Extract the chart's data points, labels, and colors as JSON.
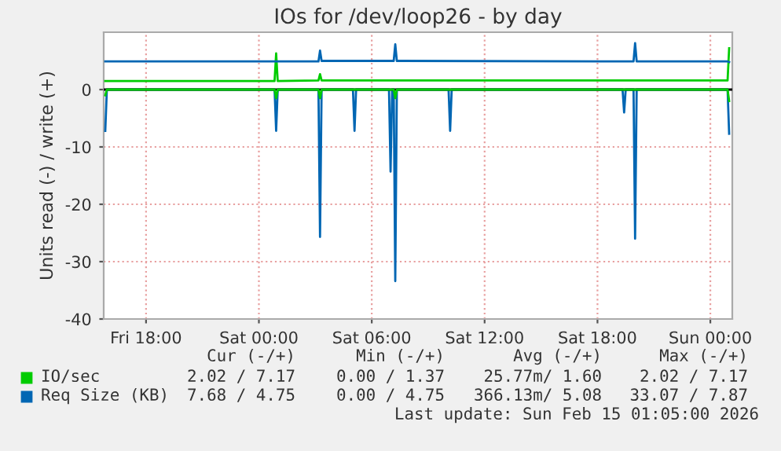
{
  "chart_data": {
    "type": "line",
    "title": "IOs for /dev/loop26 - by day",
    "ylabel": "Units read (-) / write (+)",
    "xlim": [
      "2026-02-13T15:45",
      "2026-02-15T01:10"
    ],
    "xticks": [
      {
        "value": "2026-02-13T18:00",
        "label": "Fri 18:00"
      },
      {
        "value": "2026-02-14T00:00",
        "label": "Sat 00:00"
      },
      {
        "value": "2026-02-14T06:00",
        "label": "Sat 06:00"
      },
      {
        "value": "2026-02-14T12:00",
        "label": "Sat 12:00"
      },
      {
        "value": "2026-02-14T18:00",
        "label": "Sat 18:00"
      },
      {
        "value": "2026-02-15T00:00",
        "label": "Sun 00:00"
      }
    ],
    "ylim": [
      -40,
      10
    ],
    "yticks": [
      0,
      -10,
      -20,
      -30,
      -40
    ],
    "grid": true,
    "legend": "bottom",
    "marker": "none",
    "line_style": "solid",
    "ref_lines": [
      {
        "axis": "y",
        "value": 0,
        "color": "#000000"
      }
    ],
    "series": [
      {
        "name": "IO/sec",
        "color": "#00cc00",
        "x": [
          "2026-02-13T15:50",
          "2026-02-14T00:50",
          "2026-02-14T00:55",
          "2026-02-14T01:00",
          "2026-02-14T03:10",
          "2026-02-14T03:15",
          "2026-02-14T03:20",
          "2026-02-15T00:55",
          "2026-02-15T01:00"
        ],
        "values": [
          1.5,
          1.5,
          6.3,
          1.5,
          1.6,
          2.7,
          1.6,
          1.6,
          7.2
        ]
      },
      {
        "color": "#00cc00",
        "x": [
          "2026-02-13T15:50",
          "2026-02-13T15:55",
          "2026-02-14T00:50",
          "2026-02-14T00:55",
          "2026-02-14T01:00",
          "2026-02-14T03:10",
          "2026-02-14T03:15",
          "2026-02-14T03:20",
          "2026-02-14T07:10",
          "2026-02-14T07:15",
          "2026-02-14T07:20",
          "2026-02-15T00:55",
          "2026-02-15T01:00"
        ],
        "values": [
          -1,
          0,
          0,
          -1.5,
          0,
          0,
          -1.5,
          0,
          0,
          -1.5,
          0,
          0,
          -2.0
        ]
      },
      {
        "name": "Req Size (KB)",
        "color": "#0066b3",
        "x": [
          "2026-02-13T15:50",
          "2026-02-14T03:10",
          "2026-02-14T03:15",
          "2026-02-14T03:20",
          "2026-02-14T07:10",
          "2026-02-14T07:15",
          "2026-02-14T07:20",
          "2026-02-14T19:55",
          "2026-02-14T20:00",
          "2026-02-14T20:05",
          "2026-02-15T00:55",
          "2026-02-15T01:00"
        ],
        "values": [
          4.9,
          4.9,
          6.8,
          5.0,
          5.0,
          7.9,
          5.0,
          4.9,
          8.1,
          4.9,
          4.9,
          4.8
        ]
      },
      {
        "color": "#0066b3",
        "x": [
          "2026-02-13T15:50",
          "2026-02-13T15:55",
          "2026-02-14T00:50",
          "2026-02-14T00:55",
          "2026-02-14T01:00",
          "2026-02-14T03:10",
          "2026-02-14T03:15",
          "2026-02-14T03:20",
          "2026-02-14T05:00",
          "2026-02-14T05:05",
          "2026-02-14T05:10",
          "2026-02-14T06:55",
          "2026-02-14T07:00",
          "2026-02-14T07:05",
          "2026-02-14T07:10",
          "2026-02-14T07:15",
          "2026-02-14T07:20",
          "2026-02-14T10:05",
          "2026-02-14T10:10",
          "2026-02-14T10:15",
          "2026-02-14T19:20",
          "2026-02-14T19:25",
          "2026-02-14T19:30",
          "2026-02-14T19:55",
          "2026-02-14T20:00",
          "2026-02-14T20:05",
          "2026-02-15T00:55",
          "2026-02-15T01:00"
        ],
        "values": [
          -7.2,
          0,
          0,
          -7.2,
          0,
          0,
          -25.7,
          0,
          0,
          -7.2,
          0,
          0,
          -14.3,
          0,
          0,
          -33.4,
          0,
          0,
          -7.2,
          0,
          0,
          -4.0,
          0,
          0,
          -26.0,
          0,
          0,
          -7.7
        ]
      }
    ],
    "annotations": [
      "Cur (-/+)",
      "Min (-/+)",
      "Avg (-/+)",
      "Max (-/+)",
      "2.02 / 7.17",
      "0.00 / 1.37",
      "25.77m/ 1.60",
      "2.02 / 7.17",
      "7.68 / 4.75",
      "0.00 / 4.75",
      "366.13m/ 5.08",
      "33.07 / 7.87",
      "Last update: Sun Feb 15 01:05:00 2026"
    ]
  }
}
